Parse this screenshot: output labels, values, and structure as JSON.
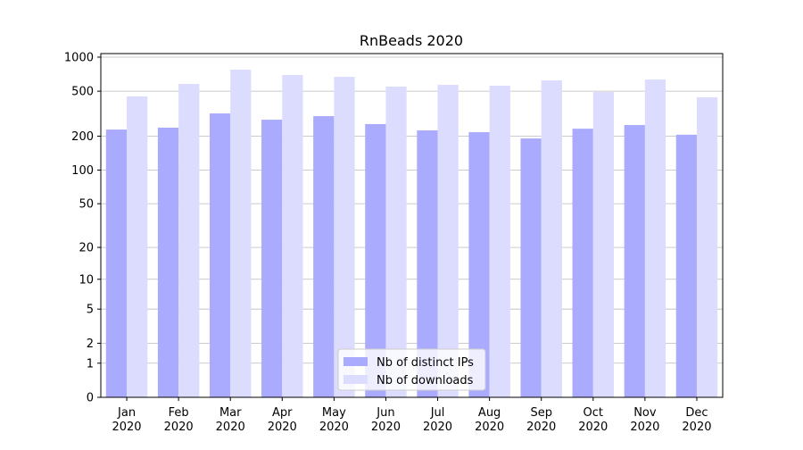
{
  "chart_data": {
    "type": "bar",
    "title": "RnBeads 2020",
    "categories": [
      "Jan\n2020",
      "Feb\n2020",
      "Mar\n2020",
      "Apr\n2020",
      "May\n2020",
      "Jun\n2020",
      "Jul\n2020",
      "Aug\n2020",
      "Sep\n2020",
      "Oct\n2020",
      "Nov\n2020",
      "Dec\n2020"
    ],
    "series": [
      {
        "name": "Nb of distinct IPs",
        "color": "#aaaaff",
        "values": [
          229,
          238,
          318,
          280,
          301,
          256,
          225,
          217,
          191,
          233,
          251,
          206
        ]
      },
      {
        "name": "Nb of downloads",
        "color": "#dcdcff",
        "values": [
          450,
          580,
          775,
          695,
          670,
          549,
          569,
          559,
          623,
          492,
          634,
          442
        ]
      }
    ],
    "yscale": "log1p",
    "ylim": [
      0,
      1075
    ],
    "yticks": [
      0,
      1,
      2,
      5,
      10,
      20,
      50,
      100,
      200,
      500,
      1000
    ],
    "grid": true,
    "legend": "lower center"
  }
}
